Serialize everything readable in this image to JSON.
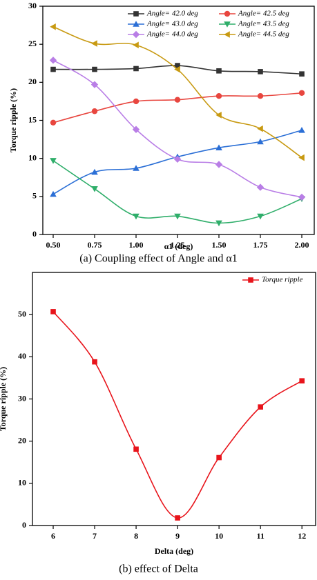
{
  "chart_data": [
    {
      "type": "line",
      "caption": "(a) Coupling effect of Angle and α1",
      "xlabel": "α1 (deg)",
      "ylabel": "Torque ripple (%)",
      "x": [
        0.5,
        0.75,
        1.0,
        1.25,
        1.5,
        1.75,
        2.0
      ],
      "xlim": [
        0.4375,
        2.075
      ],
      "xticks": [
        {
          "value": 0.5,
          "label": "0.50"
        },
        {
          "value": 0.75,
          "label": "0.75"
        },
        {
          "value": 1.0,
          "label": "1.00"
        },
        {
          "value": 1.25,
          "label": "1.25"
        },
        {
          "value": 1.5,
          "label": "1.50"
        },
        {
          "value": 1.75,
          "label": "1.75"
        },
        {
          "value": 2.0,
          "label": "2.00"
        }
      ],
      "ylim": [
        0,
        30
      ],
      "yticks": [
        0,
        5,
        10,
        15,
        20,
        25,
        30
      ],
      "legend": "upper right",
      "legend_columns": 2,
      "smooth": true,
      "series": [
        {
          "name": "Angle= 42.0 deg",
          "color": "#333333",
          "marker": "square",
          "values": [
            21.7,
            21.7,
            21.8,
            22.2,
            21.5,
            21.4,
            21.1
          ]
        },
        {
          "name": "Angle= 42.5 deg",
          "color": "#e8463f",
          "marker": "circle",
          "values": [
            14.7,
            16.2,
            17.5,
            17.7,
            18.2,
            18.2,
            18.6
          ]
        },
        {
          "name": "Angle= 43.0 deg",
          "color": "#2b6fd6",
          "marker": "triangle-up",
          "values": [
            5.3,
            8.2,
            8.7,
            10.2,
            11.4,
            12.2,
            13.7
          ]
        },
        {
          "name": "Angle= 43.5 deg",
          "color": "#2fae6a",
          "marker": "triangle-down",
          "values": [
            9.7,
            6.0,
            2.4,
            2.4,
            1.5,
            2.4,
            4.7
          ]
        },
        {
          "name": "Angle= 44.0 deg",
          "color": "#b97ee6",
          "marker": "diamond",
          "values": [
            22.9,
            19.7,
            13.8,
            9.9,
            9.2,
            6.2,
            4.9
          ]
        },
        {
          "name": "Angle= 44.5 deg",
          "color": "#c89a12",
          "marker": "triangle-left",
          "values": [
            27.3,
            25.1,
            24.9,
            21.7,
            15.7,
            13.9,
            10.1
          ]
        }
      ]
    },
    {
      "type": "line",
      "caption": "(b) effect of Delta",
      "xlabel": "Delta (deg)",
      "ylabel": "Torque ripple (%)",
      "x": [
        6,
        7,
        8,
        9,
        10,
        11,
        12
      ],
      "xlim": [
        5.5,
        12.33
      ],
      "xticks": [
        6,
        7,
        8,
        9,
        10,
        11,
        12
      ],
      "ylim": [
        0,
        60
      ],
      "yticks": [
        0,
        10,
        20,
        30,
        40,
        50
      ],
      "legend": "upper right",
      "legend_columns": 1,
      "smooth": true,
      "series": [
        {
          "name": "Torque ripple",
          "color": "#e8141b",
          "marker": "square",
          "values": [
            50.7,
            38.8,
            18.1,
            1.8,
            16.1,
            28.1,
            34.3
          ]
        }
      ]
    }
  ]
}
